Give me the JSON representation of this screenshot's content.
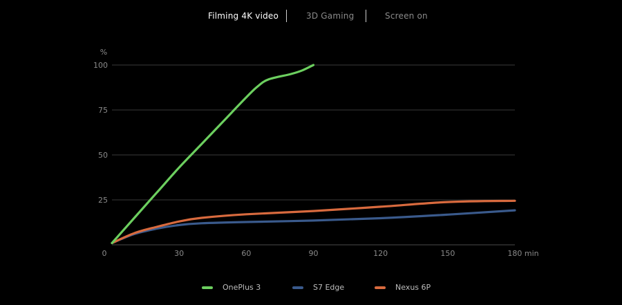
{
  "tabs": [
    {
      "label": "Filming 4K video",
      "active": true
    },
    {
      "label": "3D Gaming",
      "active": false
    },
    {
      "label": "Screen on",
      "active": false
    }
  ],
  "chart_data": {
    "type": "line",
    "y_unit": "%",
    "x_unit": "min",
    "xlim": [
      0,
      180
    ],
    "ylim": [
      0,
      100
    ],
    "x_ticks": [
      0,
      30,
      60,
      90,
      120,
      150,
      180
    ],
    "y_ticks": [
      25,
      50,
      75,
      100
    ],
    "grid": "horizontal",
    "legend_position": "bottom",
    "series": [
      {
        "name": "OnePlus 3",
        "color": "#6ccf5f",
        "points": [
          [
            0,
            1
          ],
          [
            5,
            8
          ],
          [
            10,
            15
          ],
          [
            20,
            29
          ],
          [
            30,
            43
          ],
          [
            40,
            56
          ],
          [
            50,
            69
          ],
          [
            60,
            82
          ],
          [
            65,
            88
          ],
          [
            70,
            92
          ],
          [
            80,
            95
          ],
          [
            85,
            97
          ],
          [
            90,
            100
          ]
        ]
      },
      {
        "name": "S7 Edge",
        "color": "#3a5a8c",
        "points": [
          [
            0,
            1
          ],
          [
            10,
            6
          ],
          [
            20,
            9
          ],
          [
            30,
            11
          ],
          [
            40,
            12
          ],
          [
            60,
            12.7
          ],
          [
            90,
            13.5
          ],
          [
            120,
            14.8
          ],
          [
            150,
            16.8
          ],
          [
            180,
            19.2
          ]
        ]
      },
      {
        "name": "Nexus 6P",
        "color": "#d86a3e",
        "points": [
          [
            0,
            1
          ],
          [
            10,
            6.5
          ],
          [
            20,
            10
          ],
          [
            30,
            13
          ],
          [
            40,
            15
          ],
          [
            60,
            17
          ],
          [
            90,
            18.8
          ],
          [
            120,
            21.2
          ],
          [
            150,
            23.8
          ],
          [
            180,
            24.5
          ]
        ]
      }
    ]
  }
}
